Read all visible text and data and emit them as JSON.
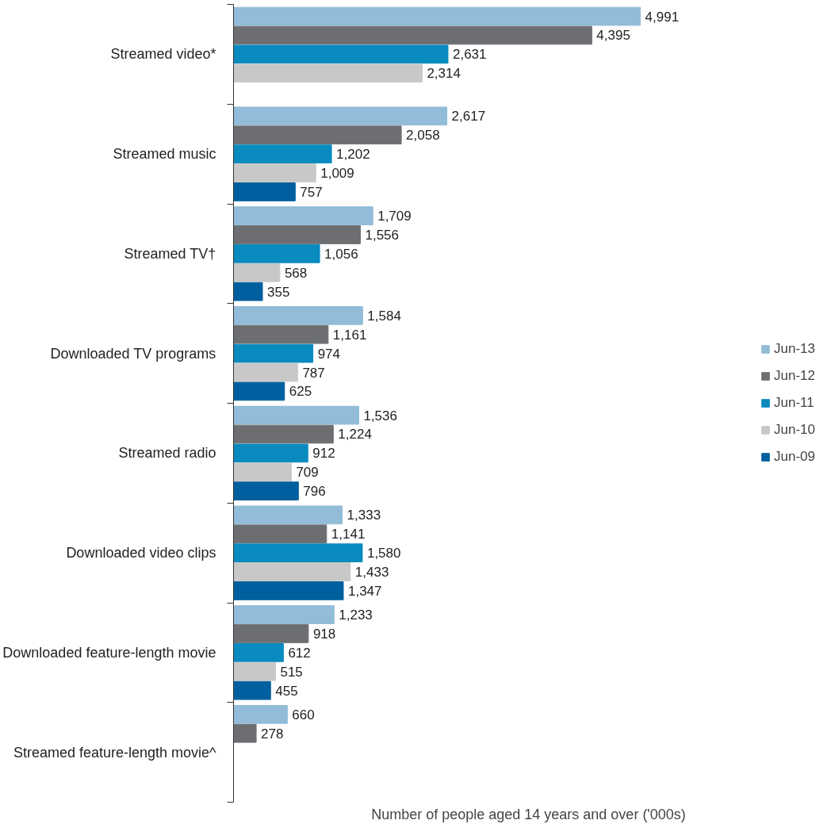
{
  "chart_data": {
    "type": "bar",
    "orientation": "horizontal",
    "xlabel": "Number of people aged 14 years and over ('000s)",
    "categories": [
      "Streamed video*",
      "Streamed music",
      "Streamed TV†",
      "Downloaded TV programs",
      "Streamed radio",
      "Downloaded video clips",
      "Downloaded feature-length movie",
      "Streamed feature-length movie^"
    ],
    "series": [
      {
        "name": "Jun-13",
        "color": "#92bcd8",
        "values": [
          4991,
          2617,
          1709,
          1584,
          1536,
          1333,
          1233,
          660
        ],
        "value_labels": [
          "4,991",
          "2,617",
          "1,709",
          "1,584",
          "1,536",
          "1,333",
          "1,233",
          "660"
        ]
      },
      {
        "name": "Jun-12",
        "color": "#6d6e71",
        "values": [
          4395,
          2058,
          1556,
          1161,
          1224,
          1141,
          918,
          278
        ],
        "value_labels": [
          "4,395",
          "2,058",
          "1,556",
          "1,161",
          "1,224",
          "1,141",
          "918",
          "278"
        ]
      },
      {
        "name": "Jun-11",
        "color": "#0a8bbf",
        "values": [
          2631,
          1202,
          1056,
          974,
          912,
          1580,
          612,
          null
        ],
        "value_labels": [
          "2,631",
          "1,202",
          "1,056",
          "974",
          "912",
          "1,580",
          "612",
          null
        ]
      },
      {
        "name": "Jun-10",
        "color": "#c8c8c8",
        "values": [
          2314,
          1009,
          568,
          787,
          709,
          1433,
          515,
          null
        ],
        "value_labels": [
          "2,314",
          "1,009",
          "568",
          "787",
          "709",
          "1,433",
          "515",
          null
        ]
      },
      {
        "name": "Jun-09",
        "color": "#005f9e",
        "values": [
          null,
          757,
          355,
          625,
          796,
          1347,
          455,
          null
        ],
        "value_labels": [
          null,
          "757",
          "355",
          "625",
          "796",
          "1,347",
          "455",
          null
        ]
      }
    ],
    "tick_labels": "y",
    "legend": "right",
    "grid": false
  }
}
